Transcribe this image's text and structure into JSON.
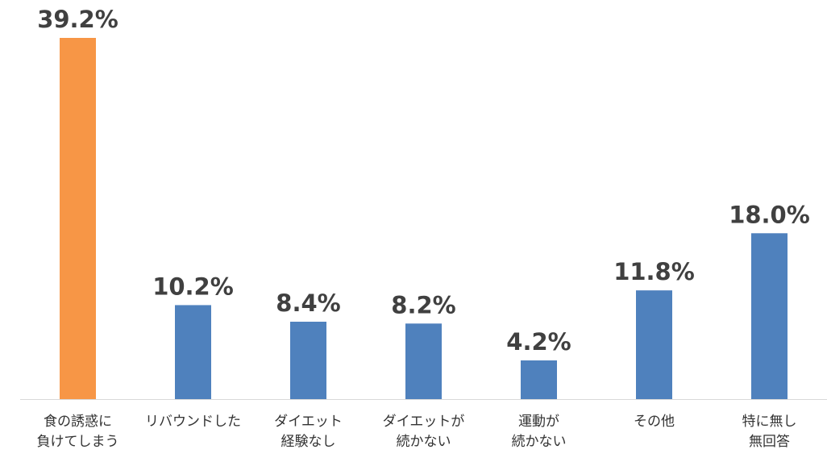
{
  "chart_data": {
    "type": "bar",
    "categories": [
      [
        "食の誘惑に",
        "負けてしまう"
      ],
      [
        "リバウンドした"
      ],
      [
        "ダイエット",
        "経験なし"
      ],
      [
        "ダイエットが",
        "続かない"
      ],
      [
        "運動が",
        "続かない"
      ],
      [
        "その他"
      ],
      [
        "特に無し",
        "無回答"
      ]
    ],
    "values": [
      39.2,
      10.2,
      8.4,
      8.2,
      4.2,
      11.8,
      18.0
    ],
    "value_labels": [
      "39.2%",
      "10.2%",
      "8.4%",
      "8.2%",
      "4.2%",
      "11.8%",
      "18.0%"
    ],
    "title": "",
    "xlabel": "",
    "ylabel": "",
    "ylim": [
      0,
      39.2
    ],
    "grid": false,
    "legend": "none",
    "colors": {
      "highlight": "#F79646",
      "default": "#4F81BD",
      "axis": "#D9D9D9",
      "label": "#404040"
    },
    "highlight_index": 0
  }
}
